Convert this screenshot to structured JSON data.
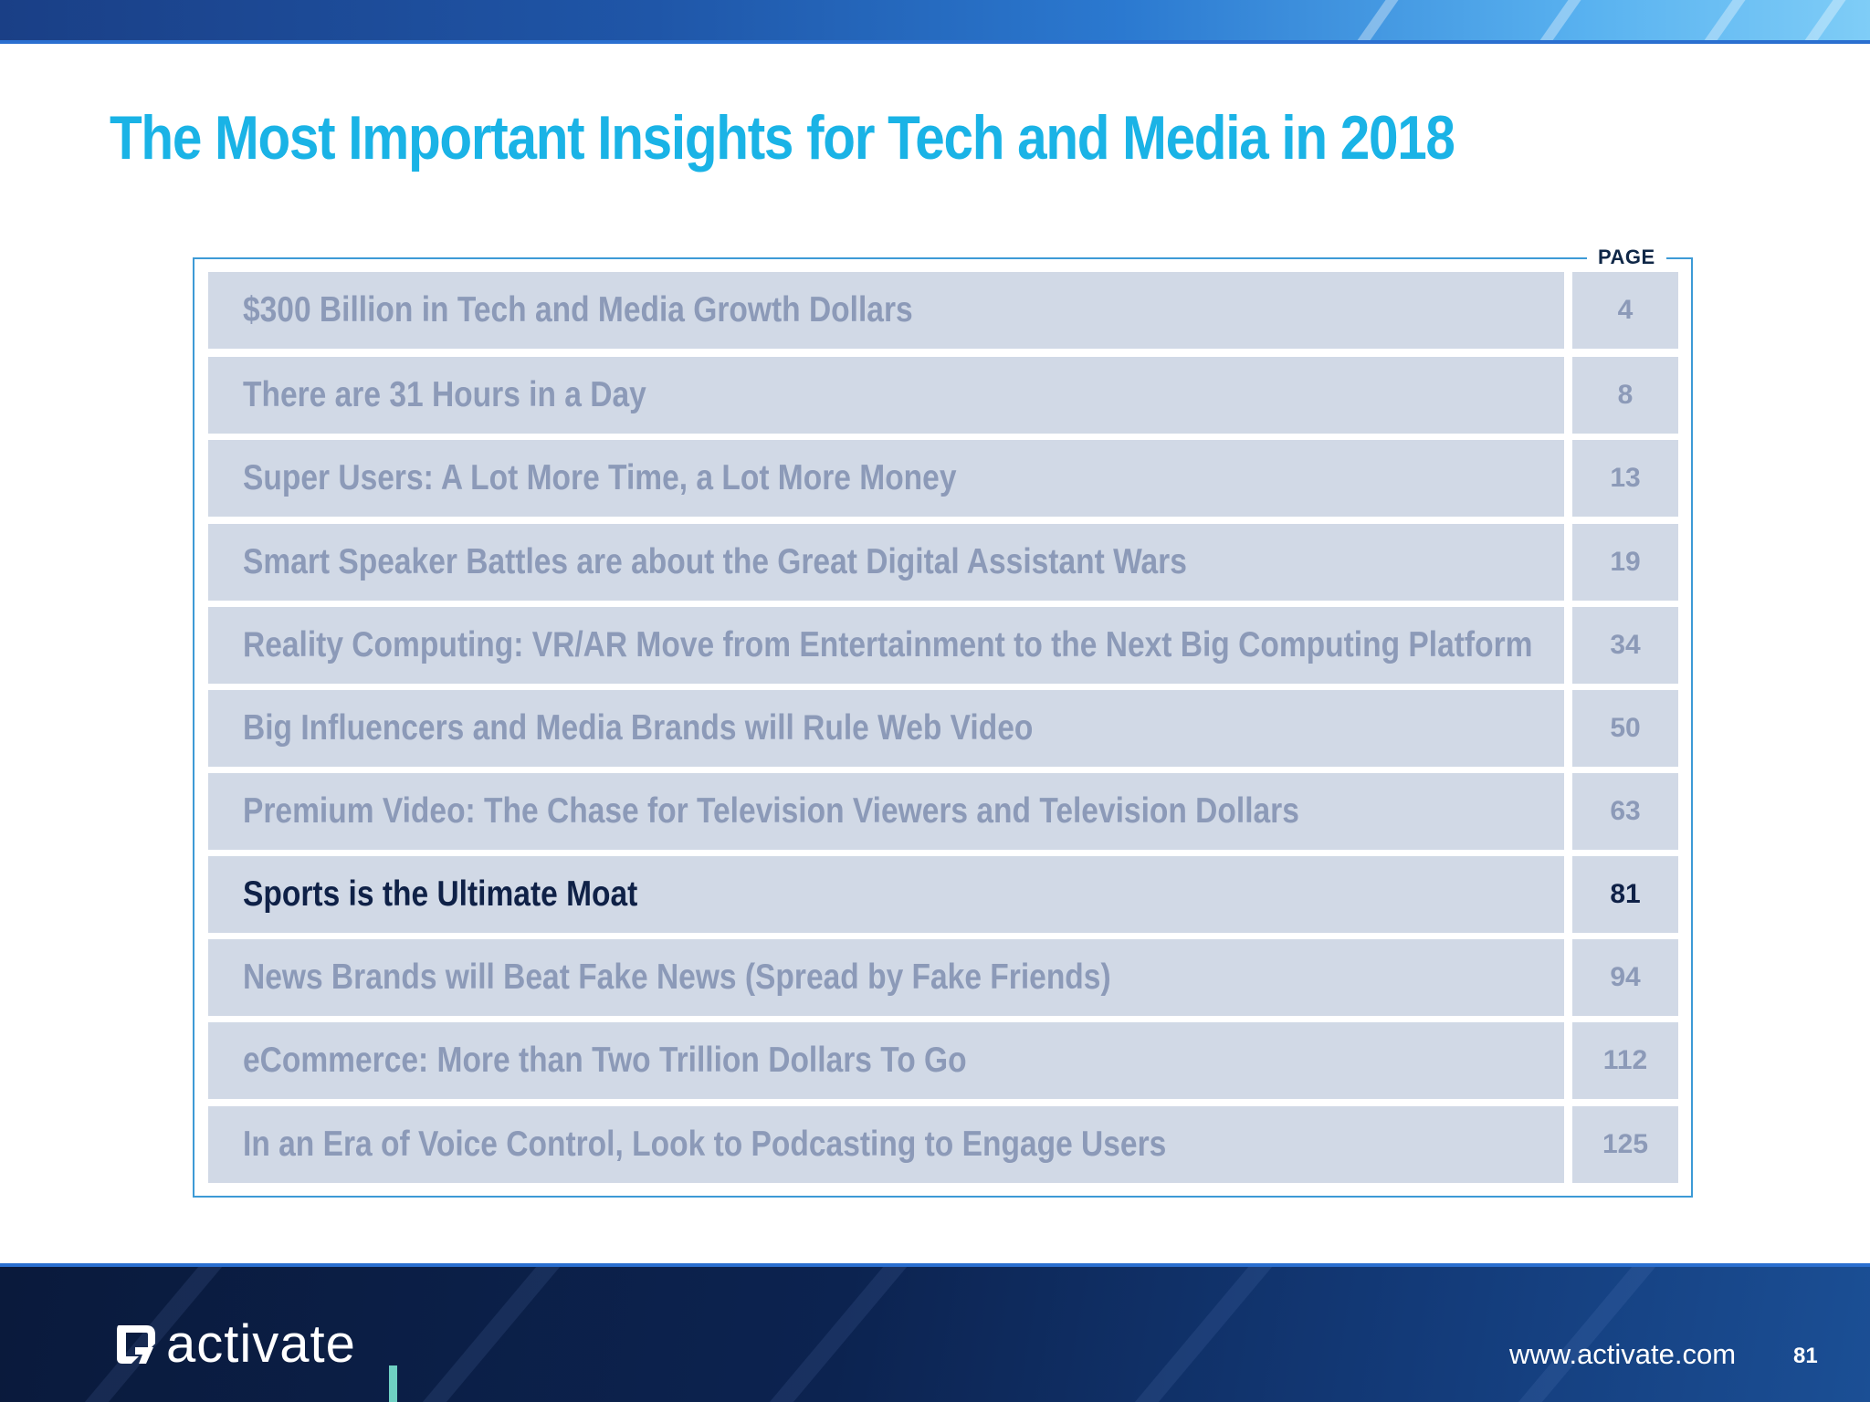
{
  "title": "The Most Important Insights for Tech and Media in 2018",
  "toc": {
    "page_header": "PAGE",
    "items": [
      {
        "title": "$300 Billion in Tech and Media Growth Dollars",
        "page": "4"
      },
      {
        "title": "There are 31 Hours in a Day",
        "page": "8"
      },
      {
        "title": "Super Users: A Lot More Time, a Lot More Money",
        "page": "13"
      },
      {
        "title": "Smart Speaker Battles are about the Great Digital Assistant Wars",
        "page": "19"
      },
      {
        "title": "Reality Computing: VR/AR Move from Entertainment to the Next Big Computing Platform",
        "page": "34"
      },
      {
        "title": "Big Influencers and Media Brands will Rule Web Video",
        "page": "50"
      },
      {
        "title": "Premium Video: The Chase for Television Viewers and Television Dollars",
        "page": "63"
      },
      {
        "title": "Sports is the Ultimate Moat",
        "page": "81"
      },
      {
        "title": "News Brands will Beat Fake News (Spread by Fake Friends)",
        "page": "94"
      },
      {
        "title": "eCommerce: More than Two Trillion Dollars To Go",
        "page": "112"
      },
      {
        "title": "In an Era of Voice Control, Look to Podcasting to Engage Users",
        "page": "125"
      }
    ],
    "active_index": 7
  },
  "footer": {
    "brand": "activate",
    "url": "www.activate.com",
    "page_number": "81"
  },
  "colors": {
    "title": "#1ab3e6",
    "row_background": "#d1d9e6",
    "row_text_inactive": "#8c9ab8",
    "row_text_active": "#0f2147",
    "frame_border": "#3d9ad6",
    "footer_background": "#0c2350",
    "accent": "#6fd0c3"
  },
  "icons": {
    "logo": "activate-logo-icon"
  }
}
